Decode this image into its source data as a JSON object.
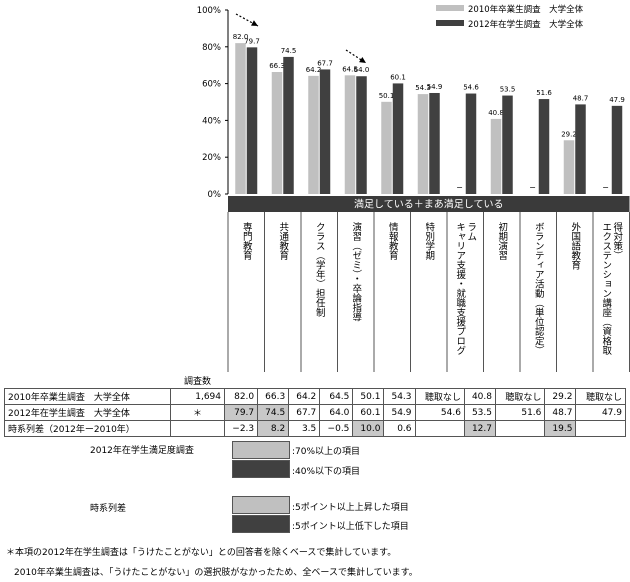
{
  "chart_data": {
    "type": "bar",
    "categories": [
      "専門教育",
      "共通教育",
      "クラス（学年）担任制",
      "演習（ゼミ）・卒論指導",
      "情報教育",
      "特別学期",
      "キャリア支援・就職支援プログラム",
      "初期演習",
      "ボランティア活動（単位認定）",
      "外国語教育",
      "エクステンション講座（資格取得対策）"
    ],
    "series": [
      {
        "name": "2010年卒業生調査　大学全体",
        "color": "#c0c0c0",
        "values": [
          82.0,
          66.3,
          64.2,
          64.5,
          50.1,
          54.3,
          null,
          40.8,
          null,
          29.2,
          null
        ]
      },
      {
        "name": "2012年在学生調査　大学全体",
        "color": "#404040",
        "values": [
          79.7,
          74.5,
          67.7,
          64.0,
          60.1,
          54.9,
          54.6,
          53.5,
          51.6,
          48.7,
          47.9
        ]
      }
    ],
    "ylim": [
      0,
      100
    ],
    "yticks": [
      "0%",
      "20%",
      "40%",
      "60%",
      "80%",
      "100%"
    ],
    "band_label": "満足している＋まあ満足している",
    "missing_mark": "−"
  },
  "table": {
    "count_header": "調査数",
    "rows": [
      {
        "label": "2010年卒業生調査　大学全体",
        "count": "1,694",
        "cells": [
          "82.0",
          "66.3",
          "64.2",
          "64.5",
          "50.1",
          "54.3",
          "聴取なし",
          "40.8",
          "聴取なし",
          "29.2",
          "聴取なし"
        ],
        "shade": [
          "",
          "",
          "",
          "",
          "",
          "",
          "",
          "",
          "",
          "",
          ""
        ]
      },
      {
        "label": "2012年在学生調査　大学全体",
        "count": "＊",
        "cells": [
          "79.7",
          "74.5",
          "67.7",
          "64.0",
          "60.1",
          "54.9",
          "54.6",
          "53.5",
          "51.6",
          "48.7",
          "47.9"
        ],
        "shade": [
          "hl",
          "hl",
          "",
          "",
          "",
          "",
          "",
          "",
          "",
          "",
          ""
        ]
      },
      {
        "label": "時系列差（2012年ー2010年）",
        "count": "",
        "cells": [
          "−2.3",
          "8.2",
          "3.5",
          "−0.5",
          "10.0",
          "0.6",
          "",
          "12.7",
          "",
          "19.5",
          ""
        ],
        "shade": [
          "",
          "hl",
          "",
          "",
          "hl",
          "",
          "",
          "hl",
          "",
          "hl",
          ""
        ]
      }
    ]
  },
  "legend2": {
    "group1": "2012年在学生満足度調査",
    "group1_items": [
      ":70%以上の項目",
      ":40%以下の項目"
    ],
    "group2": "時系列差",
    "group2_items": [
      ":5ポイント以上上昇した項目",
      ":5ポイント以上低下した項目"
    ]
  },
  "notes": [
    "＊本項の2012年在学生調査は「うけたことがない」との回答者を除くベースで集計しています。",
    "2010年卒業生調査は、「うけたことがない」の選択肢がなかったため、全ベースで集計しています。"
  ]
}
